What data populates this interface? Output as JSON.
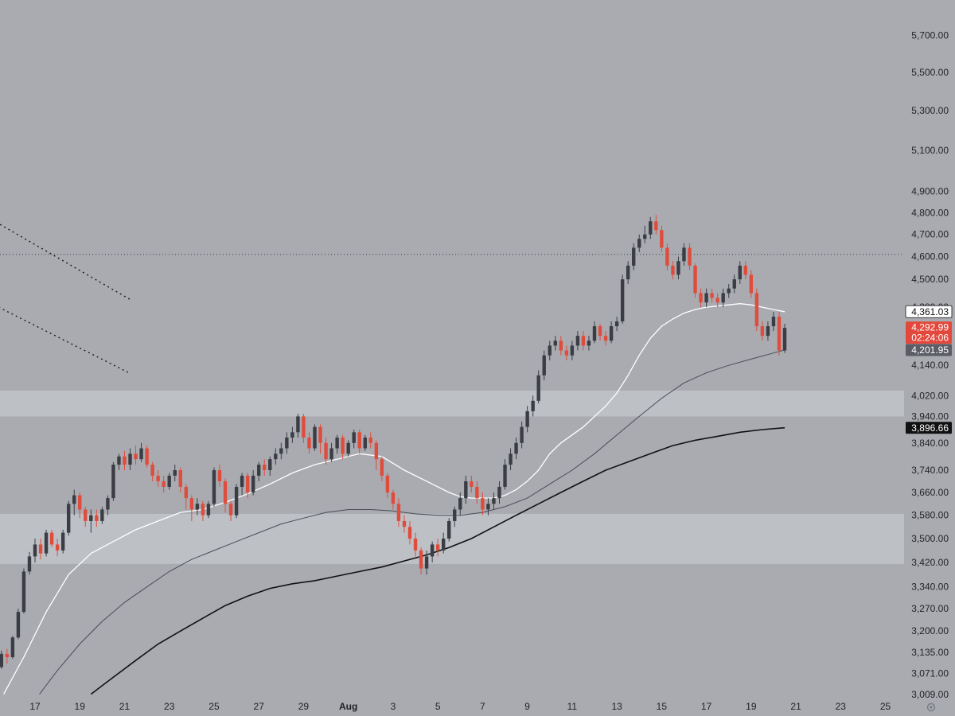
{
  "chart_data": {
    "type": "candlestick",
    "title": "",
    "colors": {
      "background": "#a9abb1",
      "band": "#c1c3c9",
      "up_candle": "#3a3d44",
      "down_candle": "#e04c3c",
      "ma_fast": "#ffffff",
      "ma_mid": "#4a4d55",
      "ma_slow": "#111111",
      "axis_text": "#1f2126",
      "badge_last": "#e2493c"
    },
    "y_axis": {
      "position": "right",
      "scale": "log",
      "range": [
        3009,
        5800
      ],
      "ticks": [
        "5,700.00",
        "5,500.00",
        "5,300.00",
        "5,100.00",
        "4,900.00",
        "4,800.00",
        "4,700.00",
        "4,600.00",
        "4,500.00",
        "4,380.00",
        "4,140.00",
        "4,020.00",
        "3,940.00",
        "3,840.00",
        "3,740.00",
        "3,660.00",
        "3,580.00",
        "3,500.00",
        "3,420.00",
        "3,340.00",
        "3,270.00",
        "3,200.00",
        "3,135.00",
        "3,071.00",
        "3,009.00"
      ]
    },
    "x_axis": {
      "ticks": [
        "17",
        "19",
        "21",
        "23",
        "25",
        "27",
        "29",
        "Aug",
        "3",
        "5",
        "7",
        "9",
        "11",
        "13",
        "15",
        "17",
        "19",
        "21",
        "23",
        "25"
      ],
      "bold_ticks": [
        "Aug"
      ]
    },
    "price_badges": [
      {
        "label": "4,361.03",
        "style": "white"
      },
      {
        "label": "4,292.99",
        "sublabel": "02:24:06",
        "style": "red"
      },
      {
        "label": "4,201.95",
        "style": "gray"
      },
      {
        "label": "3,896.66",
        "style": "black"
      }
    ],
    "horizontal_line": {
      "value": 4610,
      "style": "dotted"
    },
    "zones": [
      {
        "from": 3940,
        "to": 4040
      },
      {
        "from": 3415,
        "to": 3585
      }
    ],
    "trend_channel": {
      "upper": {
        "start": {
          "x": 14.7,
          "y": 4790
        },
        "end": {
          "x": 21.3,
          "y": 4410
        }
      },
      "lower": {
        "start": {
          "x": 12.9,
          "y": 4500
        },
        "end": {
          "x": 21.2,
          "y": 4110
        }
      }
    },
    "candles": [
      [
        15.0,
        3020,
        3045,
        3010,
        3050
      ],
      [
        15.25,
        3045,
        3090,
        3040,
        3095
      ],
      [
        15.5,
        3090,
        3130,
        3085,
        3140
      ],
      [
        15.75,
        3130,
        3120,
        3100,
        3145
      ],
      [
        16.0,
        3120,
        3180,
        3115,
        3185
      ],
      [
        16.25,
        3180,
        3260,
        3175,
        3270
      ],
      [
        16.5,
        3260,
        3390,
        3255,
        3400
      ],
      [
        16.75,
        3390,
        3440,
        3380,
        3455
      ],
      [
        17.0,
        3440,
        3480,
        3420,
        3500
      ],
      [
        17.25,
        3480,
        3450,
        3430,
        3500
      ],
      [
        17.5,
        3450,
        3520,
        3440,
        3530
      ],
      [
        17.75,
        3520,
        3480,
        3470,
        3530
      ],
      [
        18.0,
        3480,
        3460,
        3440,
        3500
      ],
      [
        18.25,
        3460,
        3520,
        3450,
        3530
      ],
      [
        18.5,
        3520,
        3620,
        3510,
        3630
      ],
      [
        18.75,
        3620,
        3650,
        3580,
        3670
      ],
      [
        19.0,
        3650,
        3600,
        3570,
        3660
      ],
      [
        19.25,
        3600,
        3560,
        3540,
        3610
      ],
      [
        19.5,
        3560,
        3580,
        3520,
        3600
      ],
      [
        19.75,
        3580,
        3560,
        3540,
        3600
      ],
      [
        20.0,
        3560,
        3600,
        3550,
        3610
      ],
      [
        20.25,
        3600,
        3640,
        3580,
        3650
      ],
      [
        20.5,
        3640,
        3760,
        3630,
        3770
      ],
      [
        20.75,
        3760,
        3790,
        3740,
        3800
      ],
      [
        21.0,
        3790,
        3760,
        3740,
        3810
      ],
      [
        21.25,
        3760,
        3800,
        3740,
        3820
      ],
      [
        21.5,
        3800,
        3780,
        3760,
        3830
      ],
      [
        21.75,
        3780,
        3820,
        3770,
        3840
      ],
      [
        22.0,
        3820,
        3760,
        3750,
        3830
      ],
      [
        22.25,
        3760,
        3720,
        3700,
        3770
      ],
      [
        22.5,
        3720,
        3700,
        3680,
        3740
      ],
      [
        22.75,
        3700,
        3680,
        3660,
        3720
      ],
      [
        23.0,
        3680,
        3720,
        3670,
        3730
      ],
      [
        23.25,
        3720,
        3740,
        3700,
        3760
      ],
      [
        23.5,
        3740,
        3680,
        3660,
        3750
      ],
      [
        23.75,
        3680,
        3640,
        3600,
        3690
      ],
      [
        24.0,
        3640,
        3600,
        3560,
        3650
      ],
      [
        24.25,
        3600,
        3620,
        3580,
        3640
      ],
      [
        24.5,
        3620,
        3580,
        3560,
        3630
      ],
      [
        24.75,
        3580,
        3620,
        3570,
        3630
      ],
      [
        25.0,
        3620,
        3740,
        3610,
        3750
      ],
      [
        25.25,
        3740,
        3700,
        3680,
        3760
      ],
      [
        25.5,
        3700,
        3620,
        3590,
        3710
      ],
      [
        25.75,
        3620,
        3580,
        3560,
        3630
      ],
      [
        26.0,
        3580,
        3680,
        3570,
        3690
      ],
      [
        26.25,
        3680,
        3720,
        3650,
        3730
      ],
      [
        26.5,
        3720,
        3660,
        3640,
        3730
      ],
      [
        26.75,
        3660,
        3720,
        3650,
        3740
      ],
      [
        27.0,
        3720,
        3760,
        3700,
        3770
      ],
      [
        27.25,
        3760,
        3740,
        3720,
        3780
      ],
      [
        27.5,
        3740,
        3780,
        3720,
        3790
      ],
      [
        27.75,
        3780,
        3800,
        3760,
        3820
      ],
      [
        28.0,
        3800,
        3820,
        3780,
        3840
      ],
      [
        28.25,
        3820,
        3860,
        3800,
        3880
      ],
      [
        28.5,
        3860,
        3880,
        3840,
        3900
      ],
      [
        28.75,
        3880,
        3940,
        3860,
        3950
      ],
      [
        29.0,
        3940,
        3860,
        3840,
        3950
      ],
      [
        29.25,
        3860,
        3820,
        3800,
        3880
      ],
      [
        29.5,
        3820,
        3900,
        3810,
        3910
      ],
      [
        29.75,
        3900,
        3840,
        3800,
        3910
      ],
      [
        30.0,
        3840,
        3780,
        3760,
        3860
      ],
      [
        30.25,
        3780,
        3820,
        3770,
        3840
      ],
      [
        30.5,
        3820,
        3860,
        3800,
        3870
      ],
      [
        30.75,
        3860,
        3800,
        3780,
        3870
      ],
      [
        31.0,
        3800,
        3840,
        3790,
        3850
      ],
      [
        31.25,
        3840,
        3880,
        3820,
        3890
      ],
      [
        31.5,
        3880,
        3820,
        3800,
        3890
      ],
      [
        31.75,
        3820,
        3860,
        3810,
        3870
      ],
      [
        32.0,
        3860,
        3840,
        3820,
        3880
      ],
      [
        32.25,
        3840,
        3780,
        3740,
        3850
      ],
      [
        32.5,
        3780,
        3720,
        3700,
        3790
      ],
      [
        32.75,
        3720,
        3660,
        3640,
        3730
      ],
      [
        33.0,
        3660,
        3620,
        3600,
        3670
      ],
      [
        33.25,
        3620,
        3560,
        3540,
        3640
      ],
      [
        33.5,
        3560,
        3540,
        3520,
        3580
      ],
      [
        33.75,
        3540,
        3500,
        3480,
        3560
      ],
      [
        34.0,
        3500,
        3460,
        3440,
        3520
      ],
      [
        34.25,
        3460,
        3400,
        3380,
        3470
      ],
      [
        34.5,
        3400,
        3440,
        3380,
        3460
      ],
      [
        34.75,
        3440,
        3480,
        3420,
        3490
      ],
      [
        35.0,
        3480,
        3460,
        3440,
        3500
      ],
      [
        35.25,
        3460,
        3500,
        3450,
        3520
      ],
      [
        35.5,
        3500,
        3560,
        3490,
        3570
      ],
      [
        35.75,
        3560,
        3600,
        3540,
        3610
      ],
      [
        36.0,
        3600,
        3640,
        3580,
        3660
      ],
      [
        36.25,
        3640,
        3700,
        3620,
        3720
      ],
      [
        36.5,
        3700,
        3680,
        3660,
        3720
      ],
      [
        36.75,
        3680,
        3640,
        3620,
        3700
      ],
      [
        37.0,
        3640,
        3600,
        3580,
        3660
      ],
      [
        37.25,
        3600,
        3620,
        3580,
        3640
      ],
      [
        37.5,
        3620,
        3640,
        3600,
        3660
      ],
      [
        37.75,
        3640,
        3680,
        3620,
        3700
      ],
      [
        38.0,
        3680,
        3760,
        3670,
        3780
      ],
      [
        38.25,
        3760,
        3800,
        3740,
        3820
      ],
      [
        38.5,
        3800,
        3840,
        3780,
        3860
      ],
      [
        38.75,
        3840,
        3900,
        3820,
        3920
      ],
      [
        39.0,
        3900,
        3960,
        3880,
        3980
      ],
      [
        39.25,
        3960,
        4000,
        3940,
        4020
      ],
      [
        39.5,
        4000,
        4100,
        3990,
        4120
      ],
      [
        39.75,
        4100,
        4180,
        4080,
        4200
      ],
      [
        40.0,
        4180,
        4220,
        4160,
        4240
      ],
      [
        40.25,
        4220,
        4240,
        4200,
        4260
      ],
      [
        40.5,
        4240,
        4200,
        4180,
        4260
      ],
      [
        40.75,
        4200,
        4180,
        4160,
        4220
      ],
      [
        41.0,
        4180,
        4220,
        4160,
        4240
      ],
      [
        41.25,
        4220,
        4260,
        4200,
        4280
      ],
      [
        41.5,
        4260,
        4220,
        4200,
        4280
      ],
      [
        41.75,
        4220,
        4240,
        4200,
        4260
      ],
      [
        42.0,
        4240,
        4300,
        4230,
        4320
      ],
      [
        42.25,
        4300,
        4260,
        4240,
        4310
      ],
      [
        42.5,
        4260,
        4240,
        4220,
        4280
      ],
      [
        42.75,
        4240,
        4300,
        4230,
        4320
      ],
      [
        43.0,
        4300,
        4320,
        4280,
        4340
      ],
      [
        43.25,
        4320,
        4500,
        4310,
        4520
      ],
      [
        43.5,
        4500,
        4560,
        4480,
        4580
      ],
      [
        43.75,
        4560,
        4640,
        4540,
        4660
      ],
      [
        44.0,
        4640,
        4680,
        4620,
        4700
      ],
      [
        44.25,
        4680,
        4700,
        4660,
        4740
      ],
      [
        44.5,
        4700,
        4760,
        4680,
        4780
      ],
      [
        44.75,
        4760,
        4720,
        4700,
        4790
      ],
      [
        45.0,
        4720,
        4640,
        4620,
        4740
      ],
      [
        45.25,
        4640,
        4560,
        4540,
        4660
      ],
      [
        45.5,
        4560,
        4520,
        4500,
        4580
      ],
      [
        45.75,
        4520,
        4580,
        4500,
        4600
      ],
      [
        46.0,
        4580,
        4640,
        4560,
        4660
      ],
      [
        46.25,
        4640,
        4560,
        4540,
        4660
      ],
      [
        46.5,
        4560,
        4440,
        4420,
        4570
      ],
      [
        46.75,
        4440,
        4400,
        4380,
        4460
      ],
      [
        47.0,
        4400,
        4440,
        4380,
        4460
      ],
      [
        47.25,
        4440,
        4420,
        4400,
        4460
      ],
      [
        47.5,
        4420,
        4400,
        4380,
        4440
      ],
      [
        47.75,
        4400,
        4440,
        4380,
        4460
      ],
      [
        48.0,
        4440,
        4460,
        4420,
        4480
      ],
      [
        48.25,
        4460,
        4500,
        4440,
        4520
      ],
      [
        48.5,
        4500,
        4560,
        4480,
        4580
      ],
      [
        48.75,
        4560,
        4520,
        4500,
        4580
      ],
      [
        49.0,
        4520,
        4440,
        4420,
        4540
      ],
      [
        49.25,
        4440,
        4300,
        4280,
        4460
      ],
      [
        49.5,
        4300,
        4260,
        4240,
        4320
      ],
      [
        49.75,
        4260,
        4300,
        4240,
        4320
      ],
      [
        50.0,
        4300,
        4340,
        4280,
        4360
      ],
      [
        50.25,
        4340,
        4200,
        4180,
        4360
      ],
      [
        50.5,
        4200,
        4293,
        4190,
        4310
      ]
    ],
    "ma_fast": [
      [
        15.6,
        3010
      ],
      [
        16.5,
        3120
      ],
      [
        17.5,
        3260
      ],
      [
        18.5,
        3380
      ],
      [
        19.5,
        3450
      ],
      [
        20.5,
        3490
      ],
      [
        21.5,
        3530
      ],
      [
        22.5,
        3560
      ],
      [
        23.5,
        3590
      ],
      [
        24.5,
        3600
      ],
      [
        25.5,
        3625
      ],
      [
        26.5,
        3655
      ],
      [
        27.5,
        3690
      ],
      [
        28.5,
        3730
      ],
      [
        29.5,
        3760
      ],
      [
        30.5,
        3780
      ],
      [
        31.5,
        3800
      ],
      [
        32.5,
        3790
      ],
      [
        33.5,
        3740
      ],
      [
        34.5,
        3700
      ],
      [
        35.5,
        3660
      ],
      [
        36.0,
        3645
      ],
      [
        36.5,
        3640
      ],
      [
        37.5,
        3640
      ],
      [
        38.0,
        3650
      ],
      [
        38.5,
        3670
      ],
      [
        39.0,
        3700
      ],
      [
        39.5,
        3740
      ],
      [
        40.0,
        3800
      ],
      [
        40.5,
        3840
      ],
      [
        41.5,
        3900
      ],
      [
        42.5,
        3980
      ],
      [
        43.0,
        4030
      ],
      [
        43.5,
        4100
      ],
      [
        44.0,
        4180
      ],
      [
        44.5,
        4250
      ],
      [
        45.0,
        4300
      ],
      [
        45.5,
        4330
      ],
      [
        46.0,
        4355
      ],
      [
        46.5,
        4370
      ],
      [
        47.0,
        4380
      ],
      [
        47.5,
        4385
      ],
      [
        48.0,
        4390
      ],
      [
        48.5,
        4395
      ],
      [
        49.0,
        4390
      ],
      [
        49.5,
        4380
      ],
      [
        50.0,
        4370
      ],
      [
        50.5,
        4361
      ]
    ],
    "ma_mid": [
      [
        17.2,
        3010
      ],
      [
        18.0,
        3080
      ],
      [
        19.0,
        3160
      ],
      [
        20.0,
        3230
      ],
      [
        21.0,
        3290
      ],
      [
        22.0,
        3340
      ],
      [
        23.0,
        3390
      ],
      [
        24.0,
        3430
      ],
      [
        25.0,
        3460
      ],
      [
        26.0,
        3490
      ],
      [
        27.0,
        3520
      ],
      [
        28.0,
        3550
      ],
      [
        29.0,
        3570
      ],
      [
        30.0,
        3590
      ],
      [
        31.0,
        3600
      ],
      [
        32.0,
        3600
      ],
      [
        33.0,
        3595
      ],
      [
        34.0,
        3585
      ],
      [
        35.0,
        3580
      ],
      [
        36.0,
        3580
      ],
      [
        37.0,
        3590
      ],
      [
        38.0,
        3610
      ],
      [
        39.0,
        3640
      ],
      [
        40.0,
        3690
      ],
      [
        41.0,
        3740
      ],
      [
        42.0,
        3800
      ],
      [
        43.0,
        3870
      ],
      [
        44.0,
        3940
      ],
      [
        45.0,
        4010
      ],
      [
        46.0,
        4070
      ],
      [
        47.0,
        4110
      ],
      [
        48.0,
        4140
      ],
      [
        49.0,
        4165
      ],
      [
        50.0,
        4190
      ],
      [
        50.5,
        4202
      ]
    ],
    "ma_slow": [
      [
        19.5,
        3010
      ],
      [
        20.5,
        3060
      ],
      [
        21.5,
        3110
      ],
      [
        22.5,
        3160
      ],
      [
        23.5,
        3200
      ],
      [
        24.5,
        3240
      ],
      [
        25.5,
        3280
      ],
      [
        26.5,
        3310
      ],
      [
        27.5,
        3335
      ],
      [
        28.5,
        3350
      ],
      [
        29.5,
        3360
      ],
      [
        30.5,
        3375
      ],
      [
        31.5,
        3390
      ],
      [
        32.5,
        3405
      ],
      [
        33.5,
        3425
      ],
      [
        34.5,
        3445
      ],
      [
        35.5,
        3470
      ],
      [
        36.5,
        3500
      ],
      [
        37.5,
        3540
      ],
      [
        38.5,
        3580
      ],
      [
        39.5,
        3620
      ],
      [
        40.5,
        3660
      ],
      [
        41.5,
        3700
      ],
      [
        42.5,
        3740
      ],
      [
        43.5,
        3770
      ],
      [
        44.5,
        3800
      ],
      [
        45.5,
        3830
      ],
      [
        46.5,
        3850
      ],
      [
        47.5,
        3865
      ],
      [
        48.5,
        3880
      ],
      [
        49.5,
        3890
      ],
      [
        50.5,
        3897
      ]
    ]
  }
}
